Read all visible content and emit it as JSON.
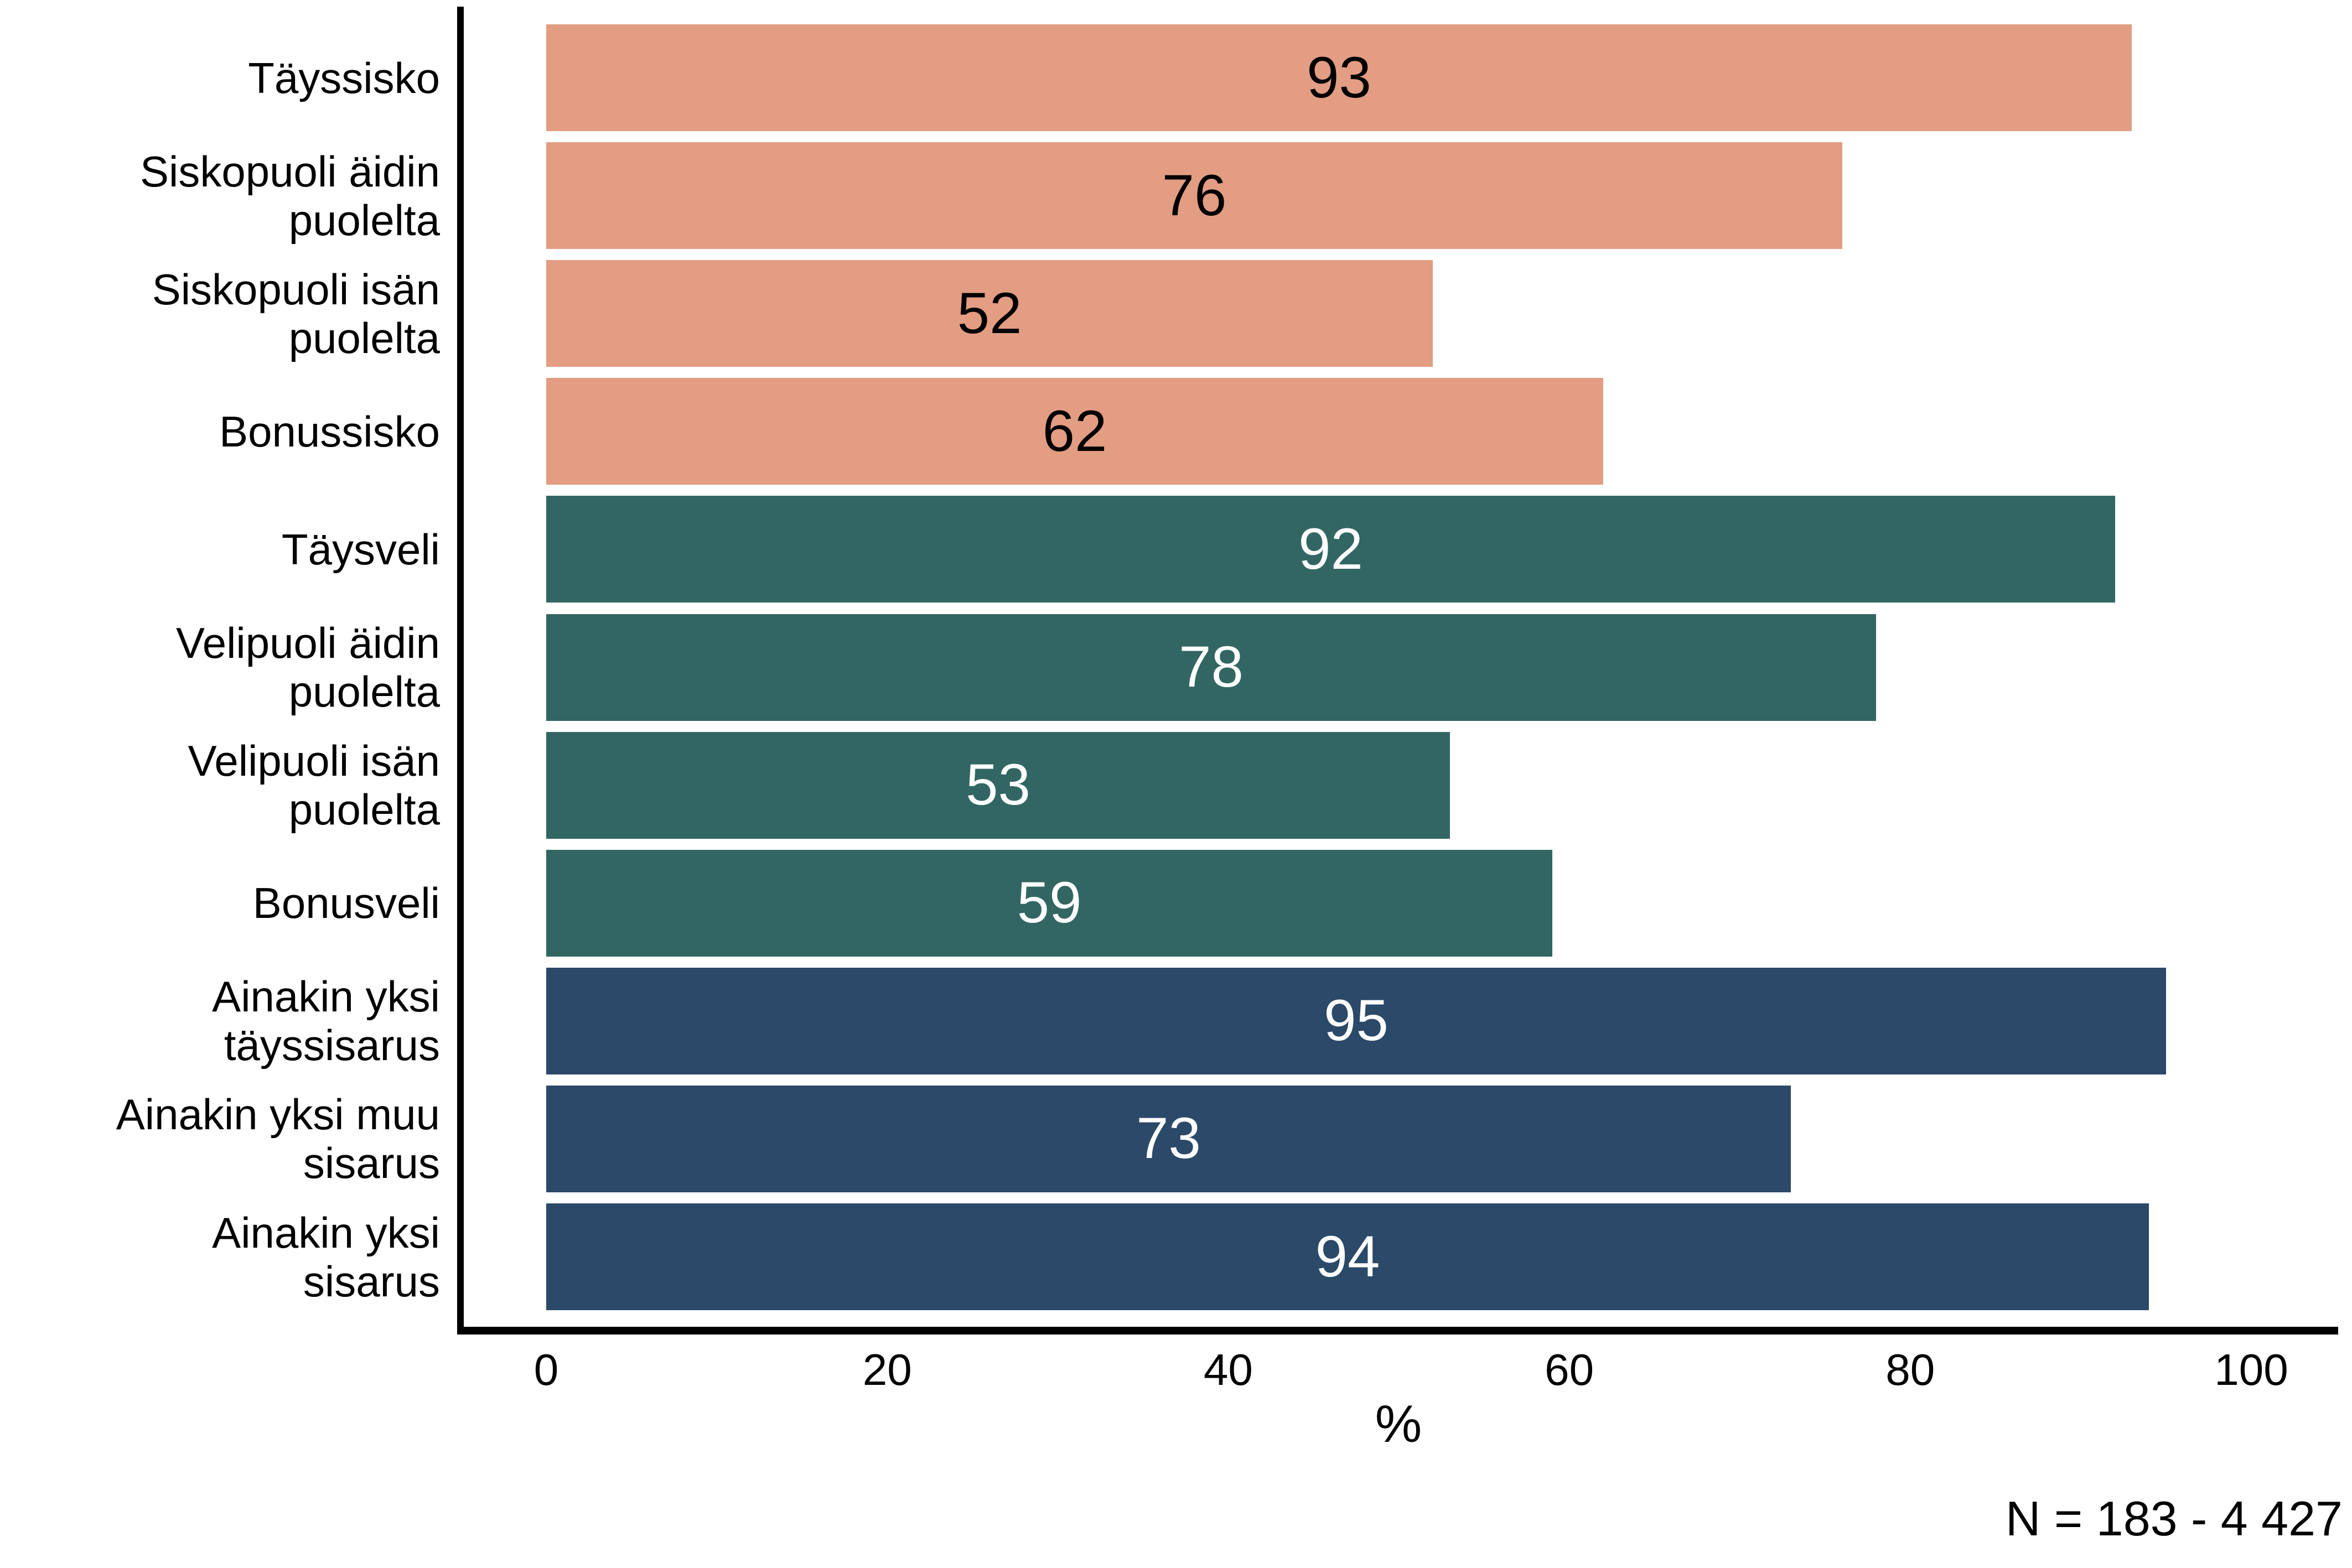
{
  "chart_data": {
    "type": "bar",
    "orientation": "horizontal",
    "title": "",
    "xlabel": "%",
    "ylabel": "",
    "xlim": [
      0,
      100
    ],
    "xticks": [
      "0",
      "20",
      "40",
      "60",
      "80",
      "100"
    ],
    "grid": false,
    "legend": false,
    "note": "N = 183 - 4 427",
    "categories": [
      "Täyssisko",
      "Siskopuoli äidin\npuolelta",
      "Siskopuoli isän\npuolelta",
      "Bonussisko",
      "Täysveli",
      "Velipuoli äidin\npuolelta",
      "Velipuoli isän\npuolelta",
      "Bonusveli",
      "Ainakin yksi\ntäyssisarus",
      "Ainakin yksi muu\nsisarus",
      "Ainakin yksi\nsisarus"
    ],
    "values": [
      93,
      76,
      52,
      62,
      92,
      78,
      53,
      59,
      95,
      73,
      94
    ],
    "groups": [
      "sisters",
      "sisters",
      "sisters",
      "sisters",
      "brothers",
      "brothers",
      "brothers",
      "brothers",
      "any",
      "any",
      "any"
    ],
    "colors": {
      "sisters": "#E29D83",
      "brothers": "#326663",
      "any": "#2B4968"
    },
    "value_label_colors": {
      "sisters": "#000000",
      "brothers": "#FFFFFF",
      "any": "#FFFFFF"
    },
    "axis_color": "#000000"
  }
}
